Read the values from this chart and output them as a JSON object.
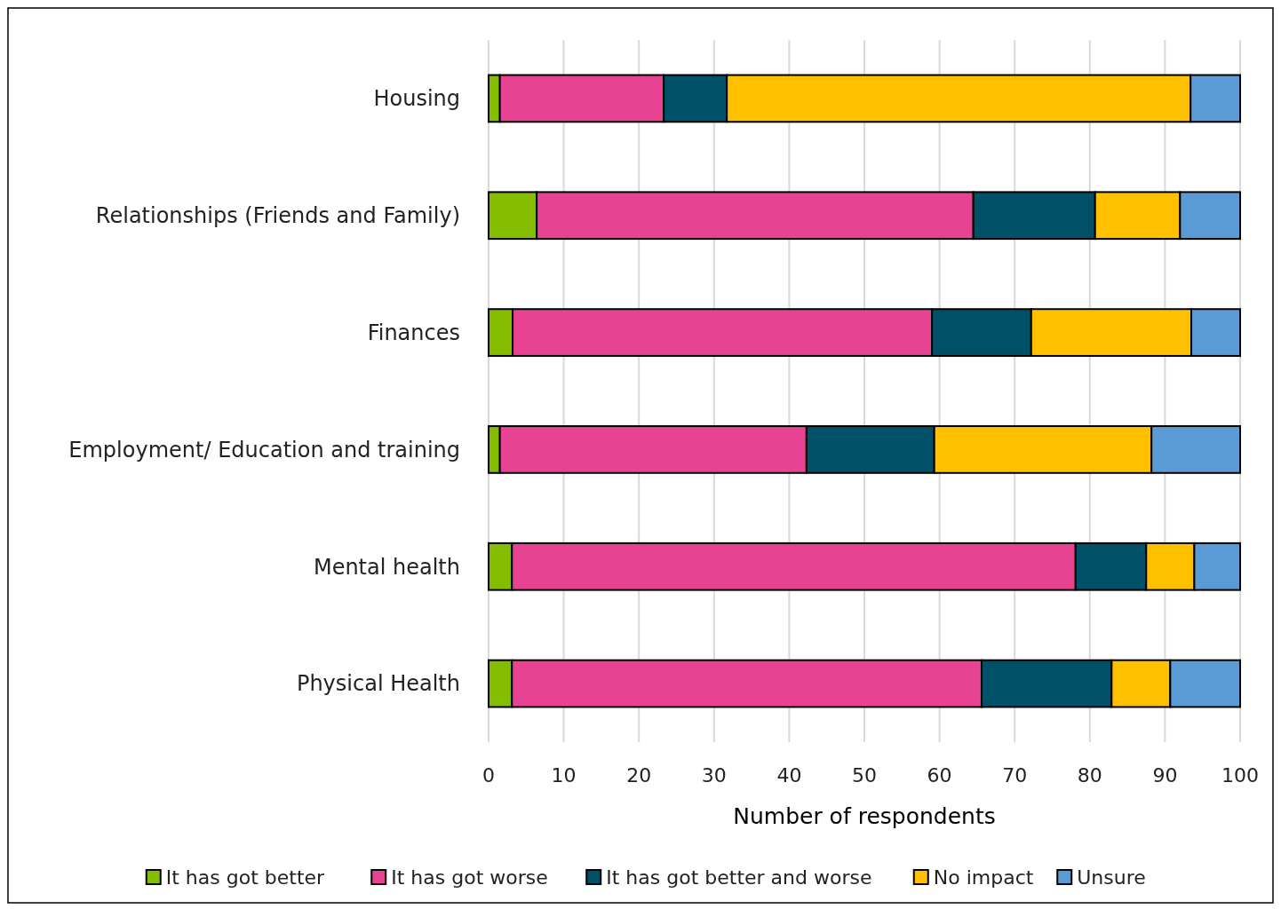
{
  "chart_data": {
    "type": "bar",
    "orientation": "horizontal",
    "stacked": true,
    "xlabel": "Number of respondents",
    "categories": [
      "Housing",
      "Relationships (Friends and Family)",
      "Finances",
      "Employment/ Education and training",
      "Mental health",
      "Physical Health"
    ],
    "series": [
      {
        "name": "It has got better",
        "color": "#84bd00",
        "values": [
          1.5,
          6.4,
          3.2,
          1.5,
          3.1,
          3.1
        ]
      },
      {
        "name": "It has got worse",
        "color": "#e84393",
        "values": [
          21.8,
          58.1,
          55.8,
          40.8,
          75.0,
          62.5
        ]
      },
      {
        "name": "It has got better and worse",
        "color": "#005068",
        "values": [
          8.4,
          16.2,
          13.2,
          17.0,
          9.4,
          17.3
        ]
      },
      {
        "name": "No impact",
        "color": "#ffc000",
        "values": [
          61.7,
          11.3,
          21.3,
          28.9,
          6.4,
          7.8
        ]
      },
      {
        "name": "Unsure",
        "color": "#5b9bd5",
        "values": [
          6.6,
          8.0,
          6.5,
          11.8,
          6.1,
          9.3
        ]
      }
    ],
    "xlim": [
      0,
      100
    ],
    "xticks": [
      0,
      10,
      20,
      30,
      40,
      50,
      60,
      70,
      80,
      90,
      100
    ],
    "grid": "x",
    "legend": "bottom"
  }
}
